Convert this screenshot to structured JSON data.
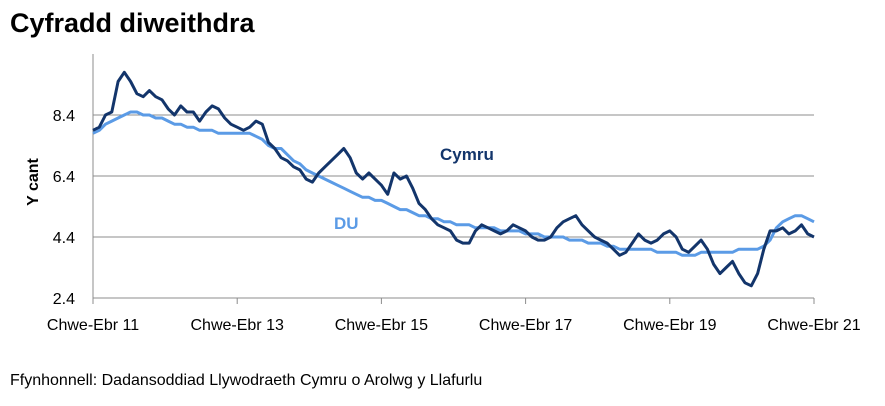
{
  "title": "Cyfradd diweithdra",
  "source": "Ffynhonnell: Dadansoddiad Llywodraeth Cymru o Arolwg y Llafurlu",
  "chart_data": {
    "type": "line",
    "title": "Cyfradd diweithdra",
    "ylabel": "Y cant",
    "xlabel": "",
    "ylim": [
      2.4,
      10.4
    ],
    "yticks": [
      2.4,
      4.4,
      6.4,
      8.4
    ],
    "xticks": [
      "Chwe-Ebr 11",
      "Chwe-Ebr 13",
      "Chwe-Ebr 15",
      "Chwe-Ebr 17",
      "Chwe-Ebr 19",
      "Chwe-Ebr 21"
    ],
    "grid": "horizontal",
    "legend": "inline labels",
    "colors": {
      "Cymru": "#13356b",
      "DU": "#5b9be6"
    },
    "series": [
      {
        "name": "Cymru",
        "values": [
          7.9,
          8.0,
          8.4,
          8.5,
          9.5,
          9.8,
          9.5,
          9.1,
          9.0,
          9.2,
          9.0,
          8.9,
          8.6,
          8.4,
          8.7,
          8.5,
          8.5,
          8.2,
          8.5,
          8.7,
          8.6,
          8.3,
          8.1,
          8.0,
          7.9,
          8.0,
          8.2,
          8.1,
          7.5,
          7.3,
          7.0,
          6.9,
          6.7,
          6.6,
          6.3,
          6.2,
          6.5,
          6.7,
          6.9,
          7.1,
          7.3,
          7.0,
          6.5,
          6.3,
          6.5,
          6.3,
          6.1,
          5.8,
          6.5,
          6.3,
          6.4,
          6.0,
          5.5,
          5.3,
          5.0,
          4.8,
          4.7,
          4.6,
          4.3,
          4.2,
          4.2,
          4.6,
          4.8,
          4.7,
          4.6,
          4.5,
          4.6,
          4.8,
          4.7,
          4.6,
          4.4,
          4.3,
          4.3,
          4.4,
          4.7,
          4.9,
          5.0,
          5.1,
          4.8,
          4.6,
          4.4,
          4.3,
          4.2,
          4.0,
          3.8,
          3.9,
          4.2,
          4.5,
          4.3,
          4.2,
          4.3,
          4.5,
          4.6,
          4.4,
          4.0,
          3.9,
          4.1,
          4.3,
          4.0,
          3.5,
          3.2,
          3.4,
          3.6,
          3.2,
          2.9,
          2.8,
          3.2,
          4.0,
          4.6,
          4.6,
          4.7,
          4.5,
          4.6,
          4.8,
          4.5,
          4.4
        ]
      },
      {
        "name": "DU",
        "values": [
          7.8,
          7.9,
          8.1,
          8.2,
          8.3,
          8.4,
          8.5,
          8.5,
          8.4,
          8.4,
          8.3,
          8.3,
          8.2,
          8.1,
          8.1,
          8.0,
          8.0,
          7.9,
          7.9,
          7.9,
          7.8,
          7.8,
          7.8,
          7.8,
          7.8,
          7.8,
          7.7,
          7.6,
          7.4,
          7.3,
          7.3,
          7.1,
          6.9,
          6.8,
          6.6,
          6.5,
          6.4,
          6.3,
          6.2,
          6.1,
          6.0,
          5.9,
          5.8,
          5.7,
          5.7,
          5.6,
          5.6,
          5.5,
          5.4,
          5.3,
          5.3,
          5.2,
          5.1,
          5.1,
          5.0,
          5.0,
          4.9,
          4.9,
          4.8,
          4.8,
          4.8,
          4.7,
          4.7,
          4.7,
          4.7,
          4.6,
          4.6,
          4.6,
          4.6,
          4.5,
          4.5,
          4.5,
          4.4,
          4.4,
          4.4,
          4.4,
          4.3,
          4.3,
          4.3,
          4.2,
          4.2,
          4.2,
          4.1,
          4.1,
          4.0,
          4.0,
          4.0,
          4.0,
          4.0,
          4.0,
          3.9,
          3.9,
          3.9,
          3.9,
          3.8,
          3.8,
          3.8,
          3.9,
          3.9,
          3.9,
          3.9,
          3.9,
          3.9,
          4.0,
          4.0,
          4.0,
          4.0,
          4.1,
          4.3,
          4.7,
          4.9,
          5.0,
          5.1,
          5.1,
          5.0,
          4.9
        ]
      }
    ],
    "labels": {
      "Cymru": "Cymru",
      "DU": "DU"
    }
  }
}
